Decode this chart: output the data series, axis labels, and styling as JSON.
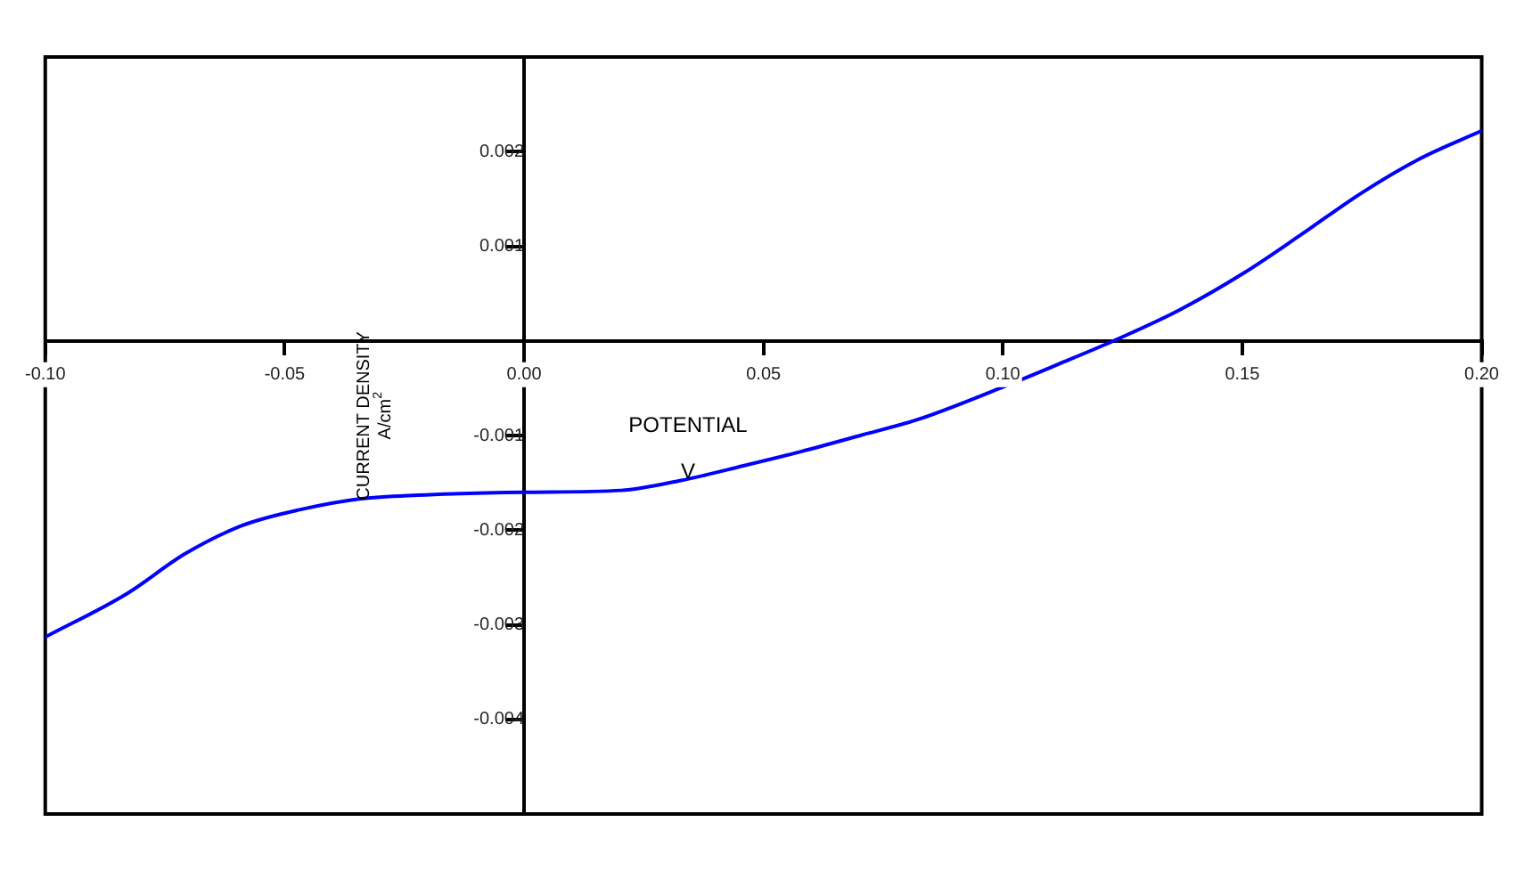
{
  "chart_data": {
    "type": "line",
    "xlabel": "POTENTIAL V",
    "ylabel": "CURRENT DENSITY A/cm$^{2}$",
    "x": [
      -0.1,
      -0.0829,
      -0.0708,
      -0.0588,
      -0.0465,
      -0.0344,
      -0.0224,
      0,
      0.0203,
      0.0323,
      0.0458,
      0.0578,
      0.0702,
      0.0823,
      0.0994,
      0.1114,
      0.1231,
      0.137,
      0.1504,
      0.1625,
      0.1745,
      0.1869,
      0.2
    ],
    "series": [
      {
        "color": "#0000ff",
        "values": [
          -0.00313,
          -0.00267,
          -0.00225,
          -0.00195,
          -0.00178,
          -0.00167,
          -0.00163,
          -0.0016,
          -0.00158,
          -0.00148,
          -0.00132,
          -0.00117,
          -0.001,
          -0.00083,
          -0.0005,
          -0.00025,
          0,
          0.00033,
          0.00072,
          0.00113,
          0.00155,
          0.00192,
          0.00222
        ]
      }
    ],
    "xlim": [
      -0.1,
      0.2
    ],
    "ylim": [
      -0.005,
      0.003
    ],
    "xticks": [
      {
        "value": -0.1,
        "label": "-0.10"
      },
      -0.05,
      {
        "value": 0,
        "label": "0.00"
      },
      0.05,
      {
        "value": 0.1,
        "label": "0.10"
      },
      0.15,
      {
        "value": 0.2,
        "label": "0.20"
      }
    ],
    "yticks": [
      0.002,
      0.001,
      -0.001,
      -0.002,
      -0.003,
      -0.004
    ],
    "grid": false,
    "legend": false,
    "marker": "none",
    "line_style": "solid"
  }
}
